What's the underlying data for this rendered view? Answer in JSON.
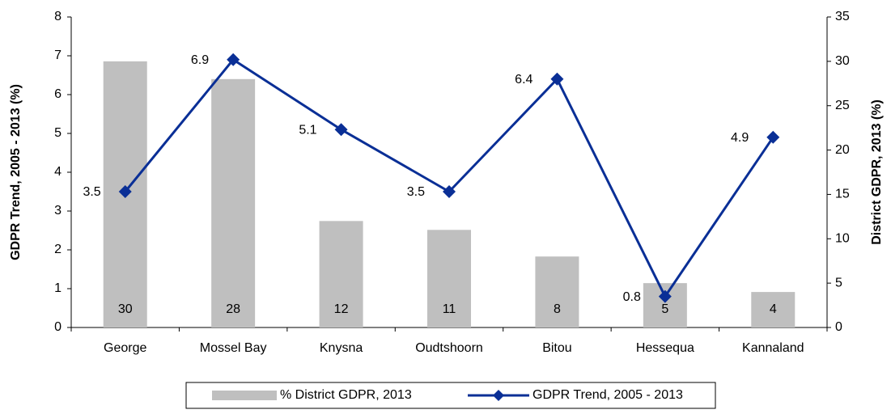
{
  "chart_data": {
    "type": "bar",
    "categories": [
      "George",
      "Mossel Bay",
      "Knysna",
      "Oudtshoorn",
      "Bitou",
      "Hessequa",
      "Kannaland"
    ],
    "series": [
      {
        "name": "% District GDPR, 2013",
        "color": "#bfbfbf",
        "type": "bar",
        "axis": "y2",
        "values": [
          30,
          28,
          12,
          11,
          8,
          5,
          4
        ]
      },
      {
        "name": "GDPR Trend, 2005 - 2013",
        "color": "#0a2f96",
        "type": "line",
        "values": [
          3.5,
          6.9,
          5.1,
          3.5,
          6.4,
          0.8,
          4.9
        ]
      }
    ],
    "ylabel": "GDPR Trend, 2005 - 2013 (%)",
    "y2label": "District GDPR, 2013 (%)",
    "ylim": [
      0,
      8
    ],
    "yticks": [
      0,
      1,
      2,
      3,
      4,
      5,
      6,
      7,
      8
    ],
    "y2lim": [
      0,
      35
    ],
    "y2ticks": [
      0,
      5,
      10,
      15,
      20,
      25,
      30,
      35
    ],
    "grid": false,
    "legend": "bottom"
  }
}
